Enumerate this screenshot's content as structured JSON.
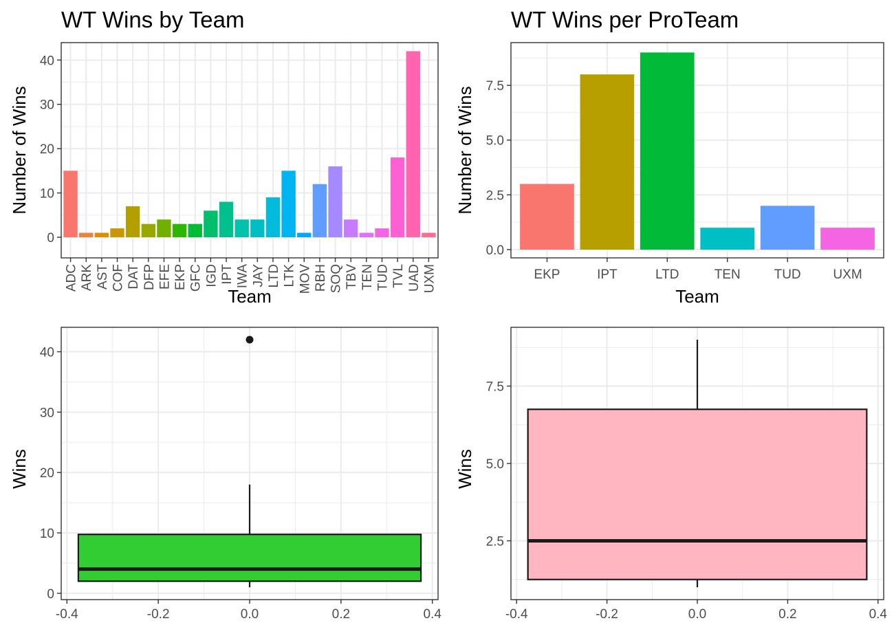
{
  "chart_data": [
    {
      "type": "bar",
      "title": "WT Wins by Team",
      "xlabel": "Team",
      "ylabel": "Number of Wins",
      "ylim": [
        0,
        43
      ],
      "yticks": [
        0,
        10,
        20,
        30,
        40
      ],
      "categories": [
        "ADC",
        "ARK",
        "AST",
        "COF",
        "DAT",
        "DFP",
        "EFE",
        "EKP",
        "GFC",
        "IGD",
        "IPT",
        "IWA",
        "JAY",
        "LTD",
        "LTK",
        "MOV",
        "RBH",
        "SOQ",
        "TBV",
        "TEN",
        "TUD",
        "TVL",
        "UAD",
        "UXM"
      ],
      "values": [
        15,
        1,
        1,
        2,
        7,
        3,
        4,
        3,
        3,
        6,
        8,
        4,
        4,
        9,
        15,
        1,
        12,
        16,
        4,
        1,
        2,
        18,
        42,
        1
      ],
      "colors": [
        "#F8766D",
        "#EC823C",
        "#DD8D00",
        "#CA9700",
        "#B3A000",
        "#97A900",
        "#71B000",
        "#2FB600",
        "#00BA38",
        "#00BE6C",
        "#00C08E",
        "#00C1AB",
        "#00BFC4",
        "#00BBDA",
        "#00B4EF",
        "#00A9FF",
        "#619CFF",
        "#A58AFF",
        "#C77CFF",
        "#E06FFB",
        "#F265E7",
        "#FC61D4",
        "#FF64B0",
        "#FF6C91"
      ],
      "grid": true,
      "legend": "none"
    },
    {
      "type": "bar",
      "title": "WT Wins per ProTeam",
      "xlabel": "Team",
      "ylabel": "Number of Wins",
      "ylim": [
        0,
        9.45
      ],
      "yticks": [
        0,
        2.5,
        5,
        7.5
      ],
      "ytick_labels": [
        "0.0",
        "2.5",
        "5.0",
        "7.5"
      ],
      "categories": [
        "EKP",
        "IPT",
        "LTD",
        "TEN",
        "TUD",
        "UXM"
      ],
      "values": [
        3,
        8,
        9,
        1,
        2,
        1
      ],
      "colors": [
        "#F8766D",
        "#B79F00",
        "#00BA38",
        "#00BFC4",
        "#619CFF",
        "#F564E3"
      ],
      "grid": true,
      "legend": "none"
    },
    {
      "type": "box",
      "title": "",
      "xlabel": "",
      "ylabel": "Wins",
      "xlim": [
        -0.4125,
        0.4125
      ],
      "xticks": [
        -0.4,
        -0.2,
        0,
        0.2,
        0.4
      ],
      "xtick_labels": [
        "-0.4",
        "-0.2",
        "0.0",
        "0.2",
        "0.4"
      ],
      "ylim": [
        -1.05,
        44.05
      ],
      "yticks": [
        0,
        10,
        20,
        30,
        40
      ],
      "box": {
        "xmin": -0.375,
        "xmax": 0.375,
        "lower_whisker": 1,
        "q1": 2,
        "median": 4,
        "q3": 9.75,
        "upper_whisker": 18,
        "outliers": [
          42
        ]
      },
      "fill": "#32CD32",
      "grid": true
    },
    {
      "type": "box",
      "title": "",
      "xlabel": "",
      "ylabel": "Wins",
      "xlim": [
        -0.4125,
        0.4125
      ],
      "xticks": [
        -0.4,
        -0.2,
        0,
        0.2,
        0.4
      ],
      "xtick_labels": [
        "-0.4",
        "-0.2",
        "0.0",
        "0.2",
        "0.4"
      ],
      "ylim": [
        0.6,
        9.4
      ],
      "yticks": [
        2.5,
        5,
        7.5
      ],
      "ytick_labels": [
        "2.5",
        "5.0",
        "7.5"
      ],
      "box": {
        "xmin": -0.375,
        "xmax": 0.375,
        "lower_whisker": 1,
        "q1": 1.25,
        "median": 2.5,
        "q3": 6.75,
        "upper_whisker": 9,
        "outliers": []
      },
      "fill": "#FFB6C1",
      "grid": true
    }
  ]
}
